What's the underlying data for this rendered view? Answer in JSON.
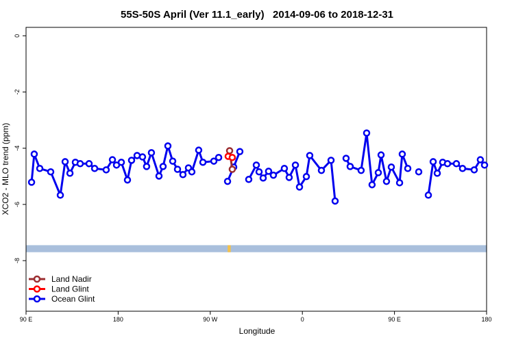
{
  "chart_data": {
    "type": "line",
    "title": "55S-50S April (Ver 11.1_early)   2014-09-06 to 2018-12-31",
    "xlabel": "Longitude",
    "ylabel": "XCO2 - MLO trend (ppm)",
    "xlim": [
      90,
      540
    ],
    "ylim": [
      -9.8,
      0.3
    ],
    "xticks": [
      {
        "value": 90,
        "label": "90 E"
      },
      180,
      {
        "value": 270,
        "label": "90 W"
      },
      {
        "value": 360,
        "label": "0"
      },
      {
        "value": 450,
        "label": "90 E"
      },
      {
        "value": 540,
        "label": "180"
      }
    ],
    "yticks": [
      0,
      -2,
      -4,
      -6,
      -8
    ],
    "legend": "lower left",
    "ocean_band": {
      "ylim": [
        -7.7,
        -7.45
      ],
      "color": "#a9bfdc"
    },
    "land_band": {
      "xlim": [
        287,
        290
      ],
      "ylim": [
        -7.7,
        -7.45
      ],
      "color": "#f2c14e"
    },
    "series": [
      {
        "name": "Land Nadir",
        "color": "#9b2d30",
        "x": [
          288.9,
          291.5
        ],
        "values": [
          -4.09,
          -4.75
        ]
      },
      {
        "name": "Land Glint",
        "color": "#ff0000",
        "x": [
          287.5,
          291.5
        ],
        "values": [
          -4.29,
          -4.33
        ]
      },
      {
        "name": "Ocean Glint",
        "color": "#0000ee",
        "x": [
          95.4,
          98.0,
          103.4,
          114.1,
          123.5,
          128.2,
          132.9,
          138.2,
          142.9,
          151.6,
          157.0,
          168.3,
          174.4,
          178.4,
          183.1,
          189.1,
          193.1,
          198.5,
          203.8,
          207.8,
          212.5,
          219.9,
          223.9,
          228.6,
          233.3,
          238.0,
          243.3,
          248.7,
          252.0,
          258.7,
          262.8,
          273.5,
          278.2,
          null,
          286.9,
          292.9,
          298.9,
          null,
          307.6,
          315.0,
          317.7,
          321.7,
          327.0,
          331.7,
          342.4,
          347.1,
          353.2,
          357.2,
          363.9,
          367.2,
          378.6,
          388.0,
          392.0,
          null,
          402.7,
          406.7,
          417.4,
          422.8,
          428.1,
          434.2,
          436.9,
          442.2,
          446.9,
          455.0,
          457.6,
          463.0,
          null,
          473.7,
          null,
          483.1,
          487.8,
          491.8,
          497.1,
          501.8,
          510.5,
          516.5,
          527.9,
          533.9,
          538.0
        ],
        "values": [
          -5.21,
          -4.21,
          -4.72,
          -4.84,
          -5.67,
          -4.48,
          -4.89,
          -4.5,
          -4.55,
          -4.55,
          -4.72,
          -4.77,
          -4.41,
          -4.6,
          -4.5,
          -5.13,
          -4.43,
          -4.26,
          -4.31,
          -4.65,
          -4.16,
          -4.99,
          -4.65,
          -3.92,
          -4.46,
          -4.75,
          -4.94,
          -4.7,
          -4.84,
          -4.07,
          -4.5,
          -4.46,
          -4.33,
          null,
          -5.18,
          -4.67,
          -4.12,
          null,
          -5.11,
          -4.6,
          -4.84,
          -5.06,
          -4.82,
          -4.96,
          -4.72,
          -5.04,
          -4.6,
          -5.38,
          -5.01,
          -4.26,
          -4.79,
          -4.43,
          -5.88,
          null,
          -4.36,
          -4.65,
          -4.79,
          -3.46,
          -5.3,
          -4.87,
          -4.24,
          -5.18,
          -4.67,
          -5.23,
          -4.21,
          -4.72,
          null,
          -4.84,
          null,
          -5.67,
          -4.48,
          -4.89,
          -4.5,
          -4.55,
          -4.55,
          -4.72,
          -4.77,
          -4.41,
          -4.6
        ]
      }
    ]
  }
}
